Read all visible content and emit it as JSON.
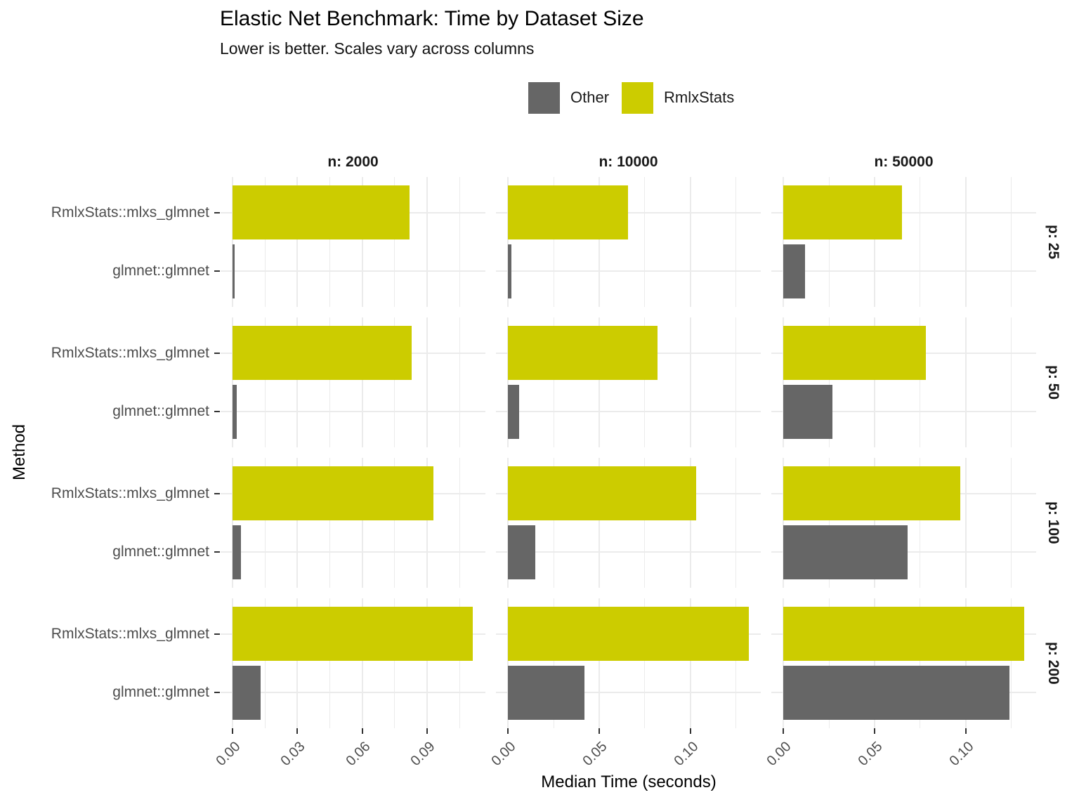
{
  "header": {
    "title": "Elastic Net Benchmark: Time by Dataset Size",
    "subtitle": "Lower is better. Scales vary across columns"
  },
  "legend": {
    "items": [
      {
        "label": "Other",
        "color": "#666666"
      },
      {
        "label": "RmlxStats",
        "color": "#cccc00"
      }
    ]
  },
  "chart_data": {
    "type": "bar",
    "orientation": "horizontal",
    "title": "Elastic Net Benchmark: Time by Dataset Size",
    "subtitle": "Lower is better. Scales vary across columns",
    "xlabel": "Median Time (seconds)",
    "ylabel": "Method",
    "units": "seconds",
    "grid": true,
    "legend_position": "top-center",
    "categories": [
      "RmlxStats::mlxs_glmnet",
      "glmnet::glmnet"
    ],
    "row_facets": [
      {
        "label": "p: 25"
      },
      {
        "label": "p: 50"
      },
      {
        "label": "p: 100"
      },
      {
        "label": "p: 200"
      }
    ],
    "col_facets": [
      {
        "label": "n: 2000",
        "xlim": [
          -0.0055,
          0.117
        ],
        "x_major_ticks": [
          0,
          0.03,
          0.06,
          0.09
        ],
        "x_tick_labels": [
          "0.00",
          "0.03",
          "0.06",
          "0.09"
        ],
        "x_minor_ticks": [
          0.015,
          0.045,
          0.075,
          0.105
        ]
      },
      {
        "label": "n: 10000",
        "xlim": [
          -0.0066,
          0.1386
        ],
        "x_major_ticks": [
          0,
          0.05,
          0.1
        ],
        "x_tick_labels": [
          "0.00",
          "0.05",
          "0.10"
        ],
        "x_minor_ticks": [
          0.025,
          0.075,
          0.125
        ]
      },
      {
        "label": "n: 50000",
        "xlim": [
          -0.0066,
          0.1386
        ],
        "x_major_ticks": [
          0,
          0.05,
          0.1
        ],
        "x_tick_labels": [
          "0.00",
          "0.05",
          "0.10"
        ],
        "x_minor_ticks": [
          0.025,
          0.075,
          0.125
        ]
      }
    ],
    "series": [
      {
        "name": "RmlxStats",
        "method": "RmlxStats::mlxs_glmnet",
        "color": "#cccc00",
        "values_by_row_col": [
          [
            0.082,
            0.066,
            0.065
          ],
          [
            0.083,
            0.082,
            0.078
          ],
          [
            0.093,
            0.103,
            0.097
          ],
          [
            0.111,
            0.132,
            0.132
          ]
        ]
      },
      {
        "name": "Other",
        "method": "glmnet::glmnet",
        "color": "#666666",
        "values_by_row_col": [
          [
            0.001,
            0.002,
            0.012
          ],
          [
            0.002,
            0.006,
            0.027
          ],
          [
            0.004,
            0.015,
            0.068
          ],
          [
            0.013,
            0.042,
            0.124
          ]
        ]
      }
    ]
  }
}
